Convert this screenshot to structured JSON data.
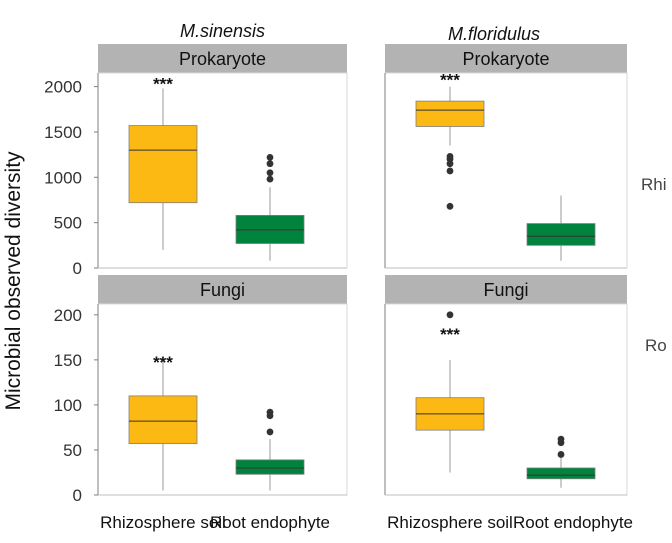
{
  "chart_data": {
    "type": "boxplot",
    "ylabel": "Microbial observed diversity",
    "column_titles": [
      "M.sinensis",
      "M.floridulus"
    ],
    "row_titles": [
      "Rhi",
      "Ro"
    ],
    "categories": [
      "Rhizosphere soil",
      "Root endophyte"
    ],
    "colors": {
      "Rhizosphere soil": "#FDB913",
      "Root endophyte": "#00843D"
    },
    "panels": [
      {
        "column": "M.sinensis",
        "strip": "Prokaryote",
        "ylim": [
          0,
          2150
        ],
        "yticks": [
          0,
          500,
          1000,
          1500,
          2000
        ],
        "significance": "***",
        "boxes": [
          {
            "category": "Rhizosphere soil",
            "min": 200,
            "q1": 720,
            "median": 1300,
            "q3": 1570,
            "max": 1980,
            "outliers": []
          },
          {
            "category": "Root endophyte",
            "min": 80,
            "q1": 270,
            "median": 420,
            "q3": 580,
            "max": 890,
            "outliers": [
              980,
              1050,
              1150,
              1220
            ]
          }
        ]
      },
      {
        "column": "M.floridulus",
        "strip": "Prokaryote",
        "ylim": [
          0,
          2150
        ],
        "yticks": [
          0,
          500,
          1000,
          1500,
          2000
        ],
        "significance": "***",
        "boxes": [
          {
            "category": "Rhizosphere soil",
            "min": 1350,
            "q1": 1560,
            "median": 1740,
            "q3": 1840,
            "max": 2000,
            "outliers": [
              1150,
              1200,
              1230,
              1070,
              680
            ]
          },
          {
            "category": "Root endophyte",
            "min": 80,
            "q1": 250,
            "median": 350,
            "q3": 490,
            "max": 800,
            "outliers": []
          }
        ]
      },
      {
        "column": "M.sinensis",
        "strip": "Fungi",
        "ylim": [
          0,
          212
        ],
        "yticks": [
          0,
          50,
          100,
          150,
          200
        ],
        "significance": "***",
        "boxes": [
          {
            "category": "Rhizosphere soil",
            "min": 5,
            "q1": 57,
            "median": 82,
            "q3": 110,
            "max": 150,
            "outliers": []
          },
          {
            "category": "Root endophyte",
            "min": 5,
            "q1": 23,
            "median": 30,
            "q3": 39,
            "max": 62,
            "outliers": [
              70,
              88,
              92
            ]
          }
        ]
      },
      {
        "column": "M.floridulus",
        "strip": "Fungi",
        "ylim": [
          0,
          212
        ],
        "yticks": [
          0,
          50,
          100,
          150,
          200
        ],
        "significance": "***",
        "boxes": [
          {
            "category": "Rhizosphere soil",
            "min": 25,
            "q1": 72,
            "median": 90,
            "q3": 108,
            "max": 150,
            "outliers": [
              200
            ]
          },
          {
            "category": "Root endophyte",
            "min": 8,
            "q1": 18,
            "median": 22,
            "q3": 30,
            "max": 42,
            "outliers": [
              45,
              58,
              62
            ]
          }
        ]
      }
    ]
  }
}
